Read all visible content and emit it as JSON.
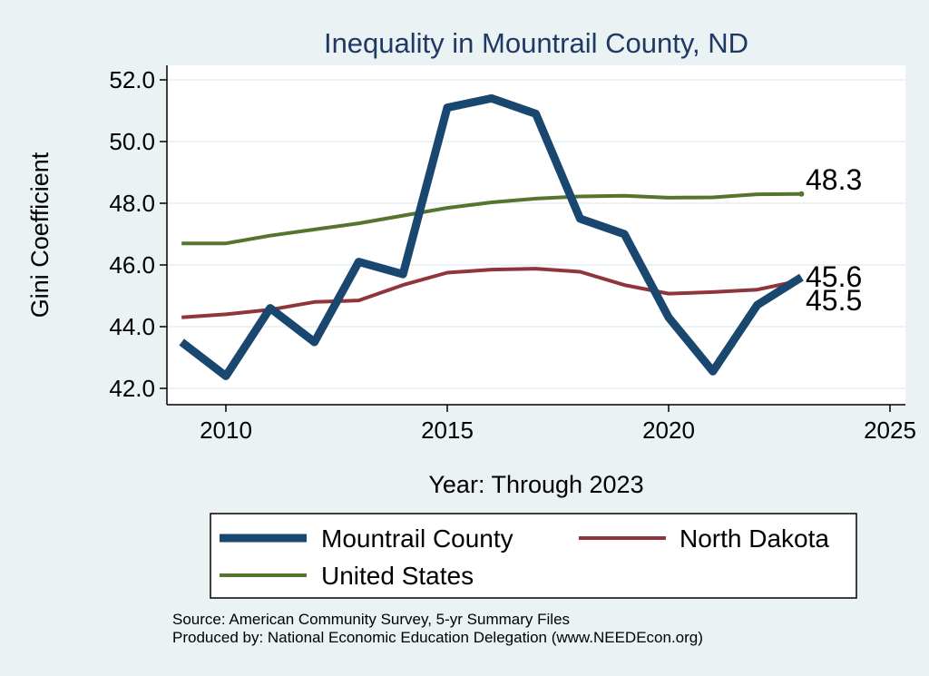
{
  "chart_data": {
    "type": "line",
    "title": "Inequality in Mountrail County, ND",
    "xlabel": "Year: Through 2023",
    "ylabel": "Gini Coefficient",
    "xlim": [
      2009,
      2025
    ],
    "ylim": [
      42.0,
      52.0
    ],
    "xticks": [
      2010,
      2015,
      2020,
      2025
    ],
    "yticks": [
      42.0,
      44.0,
      46.0,
      48.0,
      50.0,
      52.0
    ],
    "ytick_labels": [
      "42.0",
      "44.0",
      "46.0",
      "48.0",
      "50.0",
      "52.0"
    ],
    "grid": "horizontal",
    "legend_position": "bottom",
    "x": [
      2009,
      2010,
      2011,
      2012,
      2013,
      2014,
      2015,
      2016,
      2017,
      2018,
      2019,
      2020,
      2021,
      2022,
      2023
    ],
    "series": [
      {
        "name": "Mountrail County",
        "color": "#1a476f",
        "values": [
          43.5,
          42.4,
          44.6,
          43.5,
          46.1,
          45.7,
          51.1,
          51.4,
          50.9,
          47.5,
          47.0,
          44.3,
          42.55,
          44.7,
          45.6
        ],
        "end_label": "45.6"
      },
      {
        "name": "North Dakota",
        "color": "#90353b",
        "values": [
          44.3,
          44.4,
          44.55,
          44.8,
          44.85,
          45.35,
          45.75,
          45.85,
          45.88,
          45.78,
          45.35,
          45.07,
          45.12,
          45.2,
          45.5
        ],
        "end_label": "45.5"
      },
      {
        "name": "United States",
        "color": "#55752f",
        "values": [
          46.7,
          46.7,
          46.95,
          47.15,
          47.35,
          47.6,
          47.85,
          48.03,
          48.15,
          48.22,
          48.24,
          48.18,
          48.19,
          48.29,
          48.3
        ],
        "end_label": "48.3"
      }
    ]
  },
  "source_line": "Source: American Community Survey, 5-yr Summary Files",
  "produced_line": "Produced by: National Economic Education Delegation (www.NEEDEcon.org)"
}
